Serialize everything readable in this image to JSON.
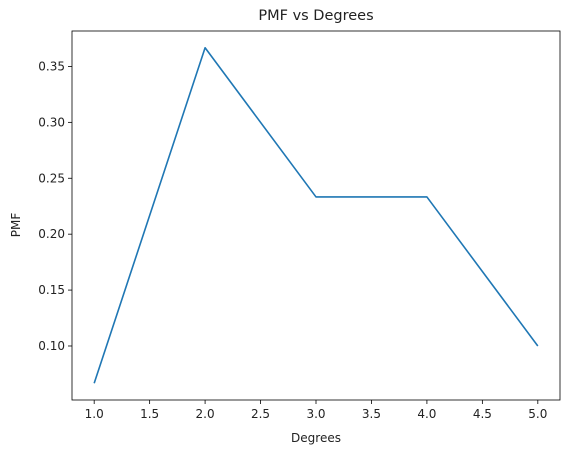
{
  "chart_data": {
    "type": "line",
    "title": "PMF vs Degrees",
    "xlabel": "Degrees",
    "ylabel": "PMF",
    "xlim": [
      0.8,
      5.2
    ],
    "ylim": [
      0.0517,
      0.3817
    ],
    "grid": false,
    "x_ticks": [
      1.0,
      1.5,
      2.0,
      2.5,
      3.0,
      3.5,
      4.0,
      4.5,
      5.0
    ],
    "y_ticks": [
      0.1,
      0.15,
      0.2,
      0.25,
      0.3,
      0.35
    ],
    "x_tick_labels": [
      "1.0",
      "1.5",
      "2.0",
      "2.5",
      "3.0",
      "3.5",
      "4.0",
      "4.5",
      "5.0"
    ],
    "y_tick_labels": [
      "0.10",
      "0.15",
      "0.20",
      "0.25",
      "0.30",
      "0.35"
    ],
    "line_color": "#1f77b4",
    "series": [
      {
        "x": [
          1,
          2,
          3,
          4,
          5
        ],
        "values": [
          0.0667,
          0.3667,
          0.2333,
          0.2333,
          0.1
        ]
      }
    ]
  }
}
